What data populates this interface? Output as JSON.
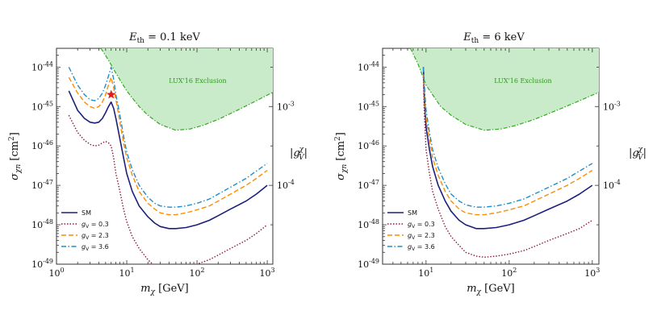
{
  "figure": {
    "panels": [
      {
        "title_var": "E",
        "title_sub": "th",
        "title_rest": " = 0.1 keV",
        "ylabel_sigma": "σ",
        "ylabel_sub": "χn",
        "ylabel_unit": " [cm",
        "ylabel_exp": "2",
        "ylabel_close": "]",
        "xlabel_m": "m",
        "xlabel_sub": "χ",
        "xlabel_unit": " [GeV]",
        "right_label_base": "|g",
        "right_label_sup": "χ",
        "right_label_sub": "V",
        "right_label_close": "|",
        "exclusion_label": "LUX'16 Exclusion"
      },
      {
        "title_var": "E",
        "title_sub": "th",
        "title_rest": " = 6 keV",
        "ylabel_sigma": "σ",
        "ylabel_sub": "χn",
        "ylabel_unit": " [cm",
        "ylabel_exp": "2",
        "ylabel_close": "]",
        "xlabel_m": "m",
        "xlabel_sub": "χ",
        "xlabel_unit": " [GeV]",
        "right_label_base": "|g",
        "right_label_sup": "χ",
        "right_label_sub": "V",
        "right_label_close": "|",
        "exclusion_label": "LUX'16 Exclusion"
      }
    ]
  },
  "chart_data": [
    {
      "type": "line",
      "title": "E_th = 0.1 keV",
      "xlabel": "m_χ [GeV]",
      "ylabel": "σ_χn [cm^2]",
      "ylabel_right": "|g_V^χ|",
      "xscale": "log",
      "yscale": "log",
      "xlim": [
        1,
        1200
      ],
      "ylim": [
        1e-49,
        3e-44
      ],
      "x_ticks": [
        1,
        10,
        100,
        1000
      ],
      "x_tick_labels": [
        "10^0",
        "10^1",
        "10^2",
        "10^3"
      ],
      "y_ticks": [
        1e-49,
        1e-48,
        1e-47,
        1e-46,
        1e-45,
        1e-44
      ],
      "y_tick_labels": [
        "10^-49",
        "10^-48",
        "10^-47",
        "10^-46",
        "10^-45",
        "10^-44"
      ],
      "right_ticks": [
        {
          "label": "10^-3",
          "at_sigma": 1e-45
        },
        {
          "label": "10^-4",
          "at_sigma": 1e-47
        }
      ],
      "legend_position": "lower-left",
      "exclusion_color": "#c9ebc9",
      "exclusion_edge_color": "#33aa22",
      "marker": {
        "shape": "star",
        "color": "#e41a1c",
        "x": 6.0,
        "y": 2e-45
      },
      "exclusion": {
        "name": "LUX'16 Exclusion",
        "x": [
          4.3,
          5.5,
          7,
          10,
          15,
          20,
          30,
          50,
          80,
          120,
          200,
          400,
          700,
          1200
        ],
        "y": [
          3e-44,
          1.5e-44,
          7e-45,
          2.5e-45,
          1e-45,
          6e-46,
          3.5e-46,
          2.5e-46,
          2.7e-46,
          3.3e-46,
          4.7e-46,
          8.5e-46,
          1.4e-45,
          2.3e-45
        ]
      },
      "series": [
        {
          "name": "SM",
          "color": "#1b1f7a",
          "dash": "solid",
          "x": [
            1.5,
            2,
            2.5,
            3,
            3.5,
            4,
            4.5,
            5,
            5.5,
            6,
            6.5,
            7,
            8,
            9,
            10,
            12,
            15,
            20,
            25,
            30,
            40,
            50,
            70,
            100,
            150,
            200,
            300,
            500,
            700,
            1000
          ],
          "y": [
            2.5e-45,
            8e-46,
            5e-46,
            4e-46,
            3.8e-46,
            4e-46,
            5e-46,
            7e-46,
            1e-45,
            1.3e-45,
            9e-46,
            5e-46,
            1.5e-46,
            5e-47,
            2e-47,
            7e-48,
            3e-48,
            1.6e-48,
            1.1e-48,
            9e-49,
            8e-49,
            8e-49,
            8.5e-49,
            1e-48,
            1.3e-48,
            1.7e-48,
            2.5e-48,
            4e-48,
            6e-48,
            1e-47
          ]
        },
        {
          "name": "g_V = 0.3",
          "color": "#8b1a3a",
          "dash": "dotted",
          "x": [
            1.5,
            2,
            2.5,
            3,
            3.5,
            4,
            4.5,
            5,
            5.5,
            6,
            6.5,
            7,
            8,
            9,
            10,
            12,
            15,
            20,
            25,
            30,
            40,
            50,
            70,
            100,
            150,
            200,
            300,
            500,
            700,
            1000
          ],
          "y": [
            6e-46,
            2.2e-46,
            1.4e-46,
            1.1e-46,
            1e-46,
            1.05e-46,
            1.2e-46,
            1.3e-46,
            1.2e-46,
            1e-46,
            5e-47,
            2e-47,
            7e-48,
            2.5e-48,
            1.2e-48,
            5e-49,
            2.5e-49,
            1.3e-49,
            9e-50,
            8e-50,
            7e-50,
            7e-50,
            8e-50,
            1e-49,
            1.3e-49,
            1.7e-49,
            2.5e-49,
            4e-49,
            6e-49,
            1e-48
          ]
        },
        {
          "name": "g_V = 2.3",
          "color": "#ff8c00",
          "dash": "dashed",
          "x": [
            1.5,
            2,
            2.5,
            3,
            3.5,
            4,
            4.5,
            5,
            5.5,
            6,
            6.5,
            7,
            8,
            9,
            10,
            12,
            15,
            20,
            25,
            30,
            40,
            50,
            70,
            100,
            150,
            200,
            300,
            500,
            700,
            1000
          ],
          "y": [
            5.5e-45,
            2.2e-45,
            1.3e-45,
            1e-45,
            9e-46,
            1e-45,
            1.3e-45,
            2e-45,
            3.5e-45,
            5.5e-45,
            3e-45,
            1.5e-45,
            4e-46,
            1.2e-46,
            5e-47,
            1.8e-47,
            7e-48,
            3.5e-48,
            2.5e-48,
            2e-48,
            1.8e-48,
            1.8e-48,
            2e-48,
            2.4e-48,
            3e-48,
            4e-48,
            6e-48,
            1e-47,
            1.5e-47,
            2.4e-47
          ]
        },
        {
          "name": "g_V = 3.6",
          "color": "#1f8ec9",
          "dash": "dashdot",
          "x": [
            1.5,
            2,
            2.5,
            3,
            3.5,
            4,
            4.5,
            5,
            5.5,
            6,
            6.5,
            7,
            8,
            9,
            10,
            12,
            15,
            20,
            25,
            30,
            40,
            50,
            70,
            100,
            150,
            200,
            300,
            500,
            700,
            1000
          ],
          "y": [
            1e-44,
            3.5e-45,
            2e-45,
            1.5e-45,
            1.4e-45,
            1.6e-45,
            2.2e-45,
            3.5e-45,
            6e-45,
            1e-44,
            5e-45,
            2e-45,
            6e-46,
            1.8e-46,
            7e-47,
            2.5e-47,
            1e-47,
            5e-48,
            3.5e-48,
            3e-48,
            2.8e-48,
            2.8e-48,
            3e-48,
            3.5e-48,
            4.5e-48,
            6e-48,
            9e-48,
            1.5e-47,
            2.3e-47,
            3.6e-47
          ]
        }
      ]
    },
    {
      "type": "line",
      "title": "E_th = 6 keV",
      "xlabel": "m_χ [GeV]",
      "ylabel": "σ_χn [cm^2]",
      "ylabel_right": "|g_V^χ|",
      "xscale": "log",
      "yscale": "log",
      "xlim": [
        3,
        1200
      ],
      "ylim": [
        1e-49,
        3e-44
      ],
      "x_ticks": [
        10,
        100,
        1000
      ],
      "x_tick_labels": [
        "10^1",
        "10^2",
        "10^3"
      ],
      "y_ticks": [
        1e-49,
        1e-48,
        1e-47,
        1e-46,
        1e-45,
        1e-44
      ],
      "y_tick_labels": [
        "10^-49",
        "10^-48",
        "10^-47",
        "10^-46",
        "10^-45",
        "10^-44"
      ],
      "right_ticks": [
        {
          "label": "10^-3",
          "at_sigma": 1e-45
        },
        {
          "label": "10^-4",
          "at_sigma": 1e-47
        }
      ],
      "legend_position": "lower-left",
      "exclusion_color": "#c9ebc9",
      "exclusion_edge_color": "#33aa22",
      "exclusion": {
        "name": "LUX'16 Exclusion",
        "x": [
          6.5,
          8,
          10,
          15,
          20,
          30,
          50,
          80,
          120,
          200,
          400,
          700,
          1200
        ],
        "y": [
          3e-44,
          1.2e-44,
          3.5e-45,
          1e-45,
          6e-46,
          3.5e-46,
          2.5e-46,
          2.7e-46,
          3.3e-46,
          4.7e-46,
          8.5e-46,
          1.4e-45,
          2.3e-45
        ]
      },
      "series": [
        {
          "name": "SM",
          "color": "#1b1f7a",
          "dash": "solid",
          "x": [
            9.3,
            9.5,
            10,
            11,
            12,
            14,
            17,
            20,
            25,
            30,
            40,
            50,
            70,
            100,
            150,
            200,
            300,
            500,
            700,
            1000
          ],
          "y": [
            1e-44,
            2e-45,
            3e-46,
            8e-47,
            3e-47,
            1e-47,
            4e-48,
            2.2e-48,
            1.3e-48,
            1e-48,
            8e-49,
            8e-49,
            8.5e-49,
            1e-48,
            1.3e-48,
            1.7e-48,
            2.5e-48,
            4e-48,
            6e-48,
            1e-47
          ]
        },
        {
          "name": "g_V = 0.3",
          "color": "#8b1a3a",
          "dash": "dotted",
          "x": [
            9.3,
            9.5,
            10,
            11,
            12,
            14,
            17,
            20,
            25,
            30,
            40,
            50,
            70,
            100,
            150,
            200,
            300,
            500,
            700,
            1000
          ],
          "y": [
            5e-45,
            8e-46,
            8e-47,
            2e-47,
            7e-48,
            2.5e-48,
            9e-49,
            5e-49,
            3e-49,
            2e-49,
            1.6e-49,
            1.5e-49,
            1.6e-49,
            1.8e-49,
            2.2e-49,
            2.8e-49,
            4e-49,
            6e-49,
            8e-49,
            1.3e-48
          ]
        },
        {
          "name": "g_V = 2.3",
          "color": "#ff8c00",
          "dash": "dashed",
          "x": [
            9.3,
            9.5,
            10,
            11,
            12,
            14,
            17,
            20,
            25,
            30,
            40,
            50,
            70,
            100,
            150,
            200,
            300,
            500,
            700,
            1000
          ],
          "y": [
            1e-44,
            3e-45,
            5e-46,
            1.5e-46,
            5e-47,
            1.8e-47,
            7e-48,
            4e-48,
            2.5e-48,
            2e-48,
            1.8e-48,
            1.8e-48,
            2e-48,
            2.4e-48,
            3e-48,
            4e-48,
            6e-48,
            1e-47,
            1.5e-47,
            2.4e-47
          ]
        },
        {
          "name": "g_V = 3.6",
          "color": "#1f8ec9",
          "dash": "dashdot",
          "x": [
            9.3,
            9.5,
            10,
            11,
            12,
            14,
            17,
            20,
            25,
            30,
            40,
            50,
            70,
            100,
            150,
            200,
            300,
            500,
            700,
            1000
          ],
          "y": [
            1e-44,
            4e-45,
            8e-46,
            2.2e-46,
            8e-47,
            2.8e-47,
            1.1e-47,
            6e-48,
            4e-48,
            3.2e-48,
            2.8e-48,
            2.8e-48,
            3e-48,
            3.5e-48,
            4.5e-48,
            6e-48,
            9e-48,
            1.5e-47,
            2.3e-47,
            3.6e-47
          ]
        }
      ]
    }
  ]
}
